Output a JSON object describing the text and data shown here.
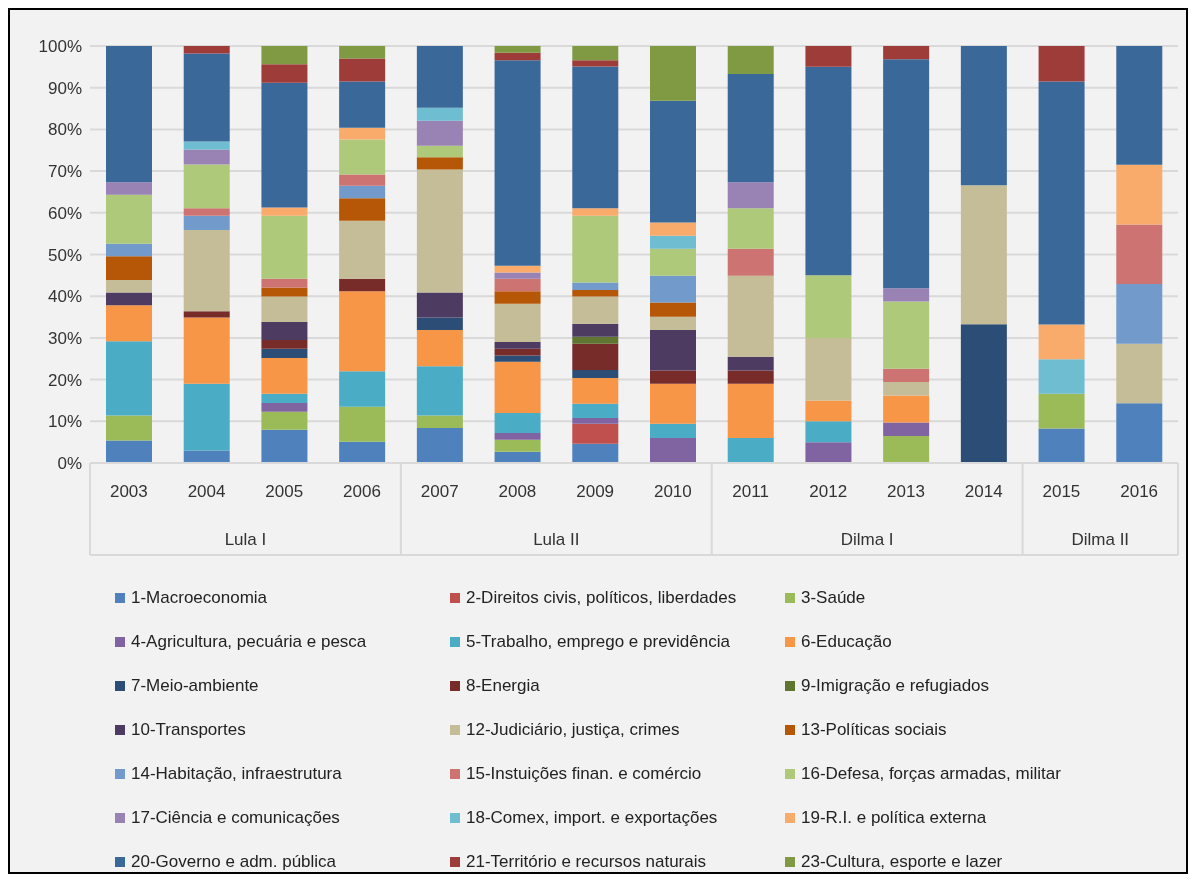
{
  "chart_data": {
    "type": "bar",
    "stacked": true,
    "categories": [
      "2003",
      "2004",
      "2005",
      "2006",
      "2007",
      "2008",
      "2009",
      "2010",
      "2011",
      "2012",
      "2013",
      "2014",
      "2015",
      "2016"
    ],
    "ylim": [
      0,
      100
    ],
    "yticks": [
      {
        "value": 0,
        "label": "0%"
      },
      {
        "value": 10,
        "label": "10%"
      },
      {
        "value": 20,
        "label": "20%"
      },
      {
        "value": 30,
        "label": "30%"
      },
      {
        "value": 40,
        "label": "40%"
      },
      {
        "value": 50,
        "label": "50%"
      },
      {
        "value": 60,
        "label": "60%"
      },
      {
        "value": 70,
        "label": "70%"
      },
      {
        "value": 80,
        "label": "80%"
      },
      {
        "value": 90,
        "label": "90%"
      },
      {
        "value": 100,
        "label": "100%"
      }
    ],
    "grid": "y",
    "legend": "bottom",
    "annotations": [
      "Lula I",
      "Lula II",
      "Dilma I",
      "Dilma II"
    ],
    "series": [
      {
        "name": "1-Macroeconomia",
        "color": "#4f81bd",
        "values": [
          5.4,
          3.0,
          8.0,
          5.1,
          8.4,
          2.7,
          4.6,
          null,
          null,
          null,
          null,
          null,
          8.3,
          14.3
        ]
      },
      {
        "name": "2-Direitos civis, políticos, liberdades",
        "color": "#c0504d",
        "values": [
          null,
          null,
          null,
          null,
          null,
          null,
          4.8,
          null,
          null,
          null,
          null,
          null,
          null,
          null
        ]
      },
      {
        "name": "3-Saúde",
        "color": "#9bbb59",
        "values": [
          6.0,
          null,
          4.3,
          8.4,
          3.0,
          2.9,
          null,
          null,
          null,
          null,
          6.5,
          null,
          8.3,
          null
        ]
      },
      {
        "name": "4-Agricultura, pecuária e pesca",
        "color": "#8064a2",
        "values": [
          null,
          null,
          2.1,
          null,
          null,
          1.6,
          1.4,
          6.0,
          null,
          5,
          3.2,
          null,
          null,
          null
        ]
      },
      {
        "name": "5-Trabalho, emprego e previdência",
        "color": "#4bacc6",
        "values": [
          17.8,
          16.0,
          2.2,
          8.5,
          11.8,
          4.8,
          3.4,
          3.4,
          6.0,
          5,
          null,
          null,
          null,
          null
        ]
      },
      {
        "name": "6-Educação",
        "color": "#f79646",
        "values": [
          8.6,
          15.9,
          8.6,
          19.2,
          8.7,
          12.3,
          6.2,
          9.6,
          13.0,
          5,
          6.5,
          null,
          null,
          null
        ]
      },
      {
        "name": "7-Meio-ambiente",
        "color": "#2c4d75",
        "values": [
          null,
          null,
          2.2,
          null,
          3.0,
          1.5,
          1.9,
          null,
          null,
          null,
          null,
          33.3,
          null,
          null
        ]
      },
      {
        "name": "8-Energia",
        "color": "#772c2a",
        "values": [
          null,
          1.5,
          2.1,
          3.0,
          null,
          1.6,
          6.3,
          3.2,
          3.2,
          null,
          null,
          null,
          null,
          null
        ]
      },
      {
        "name": "9-Imigração e refugiados",
        "color": "#5f7530",
        "values": [
          null,
          null,
          null,
          null,
          null,
          null,
          1.7,
          null,
          null,
          null,
          null,
          null,
          null,
          null
        ]
      },
      {
        "name": "10-Transportes",
        "color": "#4d3b62",
        "values": [
          3.1,
          null,
          4.3,
          null,
          6.0,
          1.6,
          3.1,
          9.7,
          3.3,
          null,
          null,
          null,
          null,
          null
        ]
      },
      {
        "name": "12-Judiciário, justiça, crimes",
        "color": "#c4bd97",
        "values": [
          3.0,
          19.5,
          6.1,
          13.9,
          29.5,
          9.2,
          6.5,
          3.2,
          19.4,
          15,
          3.2,
          33.3,
          null,
          14.3
        ]
      },
      {
        "name": "13-Políticas sociais",
        "color": "#b65708",
        "values": [
          5.7,
          null,
          2.2,
          5.4,
          2.9,
          3.0,
          1.6,
          3.4,
          null,
          null,
          null,
          null,
          null,
          null
        ]
      },
      {
        "name": "14-Habitação, infraestrutura",
        "color": "#729aca",
        "values": [
          3.0,
          3.4,
          null,
          3.0,
          null,
          null,
          1.8,
          6.4,
          null,
          null,
          null,
          null,
          null,
          14.3
        ]
      },
      {
        "name": "15-Instuições finan. e comércio",
        "color": "#cd7371",
        "values": [
          null,
          1.8,
          2.1,
          2.7,
          null,
          3.0,
          null,
          null,
          6.5,
          null,
          3.2,
          null,
          null,
          14.3
        ]
      },
      {
        "name": "16-Defesa, forças armadas, militar",
        "color": "#afc97a",
        "values": [
          11.7,
          10.5,
          15.1,
          8.4,
          2.8,
          null,
          16.0,
          6.5,
          9.7,
          15,
          16.1,
          null,
          null,
          null
        ]
      },
      {
        "name": "17-Ciência e comunicações",
        "color": "#9983b5",
        "values": [
          3.0,
          3.6,
          null,
          null,
          6.0,
          1.5,
          null,
          null,
          6.2,
          null,
          3.2,
          null,
          null,
          null
        ]
      },
      {
        "name": "18-Comex, import. e exportações",
        "color": "#6fbdd1",
        "values": [
          null,
          1.9,
          null,
          null,
          3.1,
          null,
          null,
          3.1,
          null,
          null,
          null,
          null,
          8.3,
          null
        ]
      },
      {
        "name": "19-R.I. e política externa",
        "color": "#f9ab6b",
        "values": [
          null,
          null,
          2.0,
          2.8,
          null,
          1.6,
          1.8,
          3.2,
          null,
          null,
          null,
          null,
          8.3,
          14.3
        ]
      },
      {
        "name": "20-Governo e adm. pública",
        "color": "#3a6899",
        "values": [
          32.7,
          21.1,
          29.9,
          11.1,
          14.8,
          49.3,
          34.0,
          29.2,
          26.0,
          50,
          54.9,
          33.4,
          58.3,
          28.5
        ]
      },
      {
        "name": "21-Território e recursos naturais",
        "color": "#9e3c3a",
        "values": [
          null,
          1.8,
          4.4,
          5.5,
          null,
          1.8,
          1.5,
          null,
          null,
          5,
          3.2,
          null,
          8.5,
          null
        ]
      },
      {
        "name": "23-Cultura, esporte e lazer",
        "color": "#7f9a42",
        "values": [
          null,
          null,
          4.4,
          3.0,
          null,
          1.6,
          3.4,
          13.1,
          6.7,
          null,
          null,
          null,
          null,
          null
        ]
      }
    ]
  }
}
